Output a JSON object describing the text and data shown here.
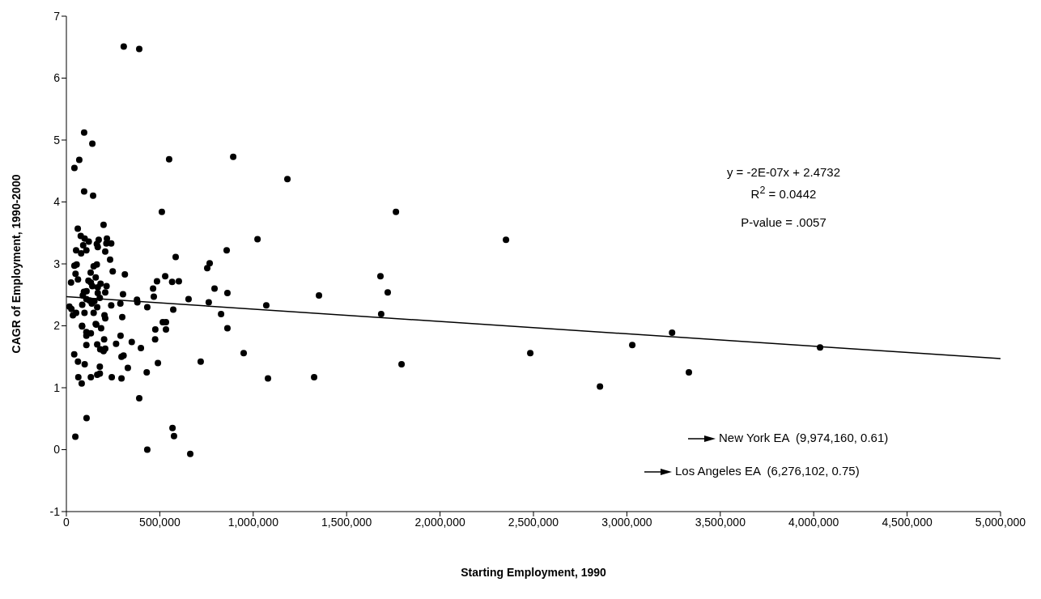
{
  "chart_data": {
    "type": "scatter",
    "xlabel": "Starting Employment, 1990",
    "ylabel": "CAGR of Employment, 1990-2000",
    "xlim": [
      0,
      5000000
    ],
    "ylim": [
      -1,
      7
    ],
    "xticks": [
      0,
      {
        "value": 500000,
        "label": "500,000"
      },
      {
        "value": 1000000,
        "label": "1,000,000"
      },
      {
        "value": 1500000,
        "label": "1,500,000"
      },
      {
        "value": 2000000,
        "label": "2,000,000"
      },
      {
        "value": 2500000,
        "label": "2,500,000"
      },
      {
        "value": 3000000,
        "label": "3,000,000"
      },
      {
        "value": 3500000,
        "label": "3,500,000"
      },
      {
        "value": 4000000,
        "label": "4,000,000"
      },
      {
        "value": 4500000,
        "label": "4,500,000"
      },
      {
        "value": 5000000,
        "label": "5,000,000"
      }
    ],
    "yticks": [
      -1,
      0,
      1,
      2,
      3,
      4,
      5,
      6,
      7
    ],
    "grid": false,
    "annotations": [
      "y = -2E-07x + 2.4732",
      "R$^{2}$ = 0.0442",
      "P-value = .0057",
      "New York EA  (9,974,160, 0.61)",
      "Los Angeles EA  (6,276,102, 0.75)"
    ],
    "series": [
      {
        "color": "#000000",
        "marker": "circle",
        "x": [
          307000,
          390000,
          95000,
          139000,
          69000,
          43000,
          95000,
          143000,
          550000,
          893000,
          1183000,
          511000,
          1764000,
          2353000,
          1023000,
          61000,
          199000,
          585000,
          858000,
          767000,
          754000,
          1681000,
          1720000,
          529000,
          602000,
          566000,
          485000,
          793000,
          862000,
          654000,
          762000,
          1070000,
          1352000,
          1685000,
          828000,
          862000,
          468000,
          464000,
          572000,
          476000,
          533000,
          949000,
          719000,
          1079000,
          1326000,
          1794000,
          2483000,
          2856000,
          3029000,
          3242000,
          3332000,
          4034000,
          568000,
          576000,
          433000,
          663000,
          390000,
          108000,
          48000,
          42000,
          62000,
          98000,
          64000,
          82000,
          131000,
          165000,
          179000,
          179000,
          243000,
          295000,
          329000,
          430000,
          490000,
          295000,
          306000,
          181000,
          199000,
          208000,
          165000,
          107000,
          202000,
          266000,
          290000,
          350000,
          399000,
          475000,
          107000,
          131000,
          107000,
          84000,
          160000,
          186000,
          77000,
          98000,
          120000,
          90000,
          173000,
          217000,
          214000,
          240000,
          163000,
          168000,
          208000,
          52000,
          79000,
          107000,
          234000,
          43000,
          55000,
          146000,
          163000,
          130000,
          248000,
          313000,
          49000,
          62000,
          25000,
          118000,
          131000,
          157000,
          183000,
          215000,
          168000,
          139000,
          94000,
          108000,
          168000,
          208000,
          303000,
          378000,
          88000,
          107000,
          124000,
          150000,
          179000,
          16000,
          27000,
          85000,
          136000,
          165000,
          240000,
          289000,
          380000,
          433000,
          35000,
          52000,
          97000,
          146000,
          204000,
          208000,
          299000,
          516000,
          533000,
          84000,
          157000
        ],
        "values": [
          6.51,
          6.47,
          5.12,
          4.94,
          4.68,
          4.55,
          4.17,
          4.1,
          4.69,
          4.73,
          4.37,
          3.84,
          3.84,
          3.39,
          3.4,
          3.57,
          3.63,
          3.11,
          3.22,
          3.01,
          2.93,
          2.8,
          2.54,
          2.8,
          2.72,
          2.71,
          2.72,
          2.6,
          2.53,
          2.43,
          2.38,
          2.33,
          2.49,
          2.19,
          2.19,
          1.96,
          2.47,
          2.6,
          2.26,
          1.94,
          1.94,
          1.56,
          1.42,
          1.15,
          1.17,
          1.38,
          1.56,
          1.02,
          1.69,
          1.89,
          1.25,
          1.65,
          0.35,
          0.22,
          0.0,
          -0.07,
          0.83,
          0.51,
          0.21,
          1.54,
          1.42,
          1.38,
          1.17,
          1.07,
          1.17,
          1.21,
          1.23,
          1.34,
          1.17,
          1.15,
          1.32,
          1.25,
          1.4,
          1.5,
          1.52,
          1.62,
          1.59,
          1.63,
          1.7,
          1.69,
          1.78,
          1.71,
          1.84,
          1.74,
          1.64,
          1.78,
          1.9,
          1.88,
          1.84,
          1.99,
          2.02,
          1.96,
          3.45,
          3.41,
          3.36,
          3.3,
          3.39,
          3.41,
          3.33,
          3.33,
          3.32,
          3.27,
          3.2,
          3.22,
          3.17,
          3.22,
          3.07,
          2.97,
          2.99,
          2.96,
          2.99,
          2.86,
          2.88,
          2.83,
          2.84,
          2.75,
          2.7,
          2.73,
          2.7,
          2.78,
          2.68,
          2.64,
          2.62,
          2.64,
          2.55,
          2.56,
          2.53,
          2.54,
          2.51,
          2.42,
          2.49,
          2.43,
          2.41,
          2.4,
          2.45,
          2.31,
          2.27,
          2.34,
          2.36,
          2.3,
          2.33,
          2.36,
          2.38,
          2.3,
          2.17,
          2.21,
          2.21,
          2.21,
          2.17,
          2.12,
          2.14,
          2.06,
          2.06,
          2.0,
          2.03
        ]
      },
      {
        "type": "line",
        "color": "#000000",
        "marker": "none",
        "x": [
          0,
          5000000
        ],
        "values": [
          2.47,
          1.47
        ]
      }
    ]
  }
}
